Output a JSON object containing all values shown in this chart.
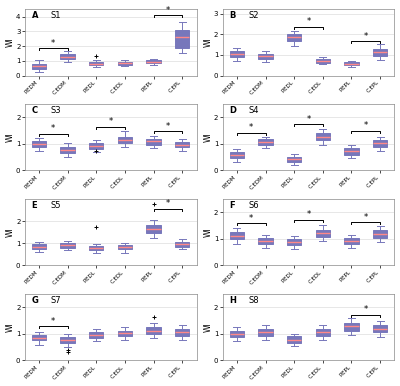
{
  "panels": [
    {
      "label": "A",
      "subject": "S1",
      "ylim": [
        0,
        4.5
      ],
      "yticks": [
        0,
        1,
        2,
        3,
        4
      ],
      "boxes": [
        {
          "med": 0.65,
          "q1": 0.48,
          "q3": 0.78,
          "whislo": 0.25,
          "whishi": 1.05,
          "fliers": []
        },
        {
          "med": 1.3,
          "q1": 1.12,
          "q3": 1.5,
          "whislo": 0.95,
          "whishi": 1.65,
          "fliers": []
        },
        {
          "med": 0.8,
          "q1": 0.72,
          "q3": 0.92,
          "whislo": 0.6,
          "whishi": 1.05,
          "fliers": [
            1.35
          ]
        },
        {
          "med": 0.85,
          "q1": 0.75,
          "q3": 0.95,
          "whislo": 0.65,
          "whishi": 1.05,
          "fliers": []
        },
        {
          "med": 0.95,
          "q1": 0.85,
          "q3": 1.05,
          "whislo": 0.75,
          "whishi": 1.15,
          "fliers": []
        },
        {
          "med": 2.6,
          "q1": 1.9,
          "q3": 3.1,
          "whislo": 1.55,
          "whishi": 3.65,
          "fliers": []
        }
      ],
      "sig_brackets": [
        [
          [
            0,
            1
          ],
          1.85,
          "*"
        ],
        [
          [
            4,
            5
          ],
          4.1,
          "*"
        ]
      ]
    },
    {
      "label": "B",
      "subject": "S2",
      "ylim": [
        0,
        3.2
      ],
      "yticks": [
        0,
        1,
        2,
        3
      ],
      "boxes": [
        {
          "med": 1.05,
          "q1": 0.88,
          "q3": 1.18,
          "whislo": 0.72,
          "whishi": 1.32,
          "fliers": []
        },
        {
          "med": 0.95,
          "q1": 0.8,
          "q3": 1.05,
          "whislo": 0.65,
          "whishi": 1.18,
          "fliers": []
        },
        {
          "med": 1.85,
          "q1": 1.68,
          "q3": 2.0,
          "whislo": 1.45,
          "whishi": 2.18,
          "fliers": []
        },
        {
          "med": 0.72,
          "q1": 0.62,
          "q3": 0.82,
          "whislo": 0.55,
          "whishi": 0.88,
          "fliers": []
        },
        {
          "med": 0.58,
          "q1": 0.5,
          "q3": 0.65,
          "whislo": 0.42,
          "whishi": 0.72,
          "fliers": []
        },
        {
          "med": 1.12,
          "q1": 0.95,
          "q3": 1.3,
          "whislo": 0.78,
          "whishi": 1.55,
          "fliers": []
        }
      ],
      "sig_brackets": [
        [
          [
            2,
            3
          ],
          2.35,
          "*"
        ],
        [
          [
            4,
            5
          ],
          1.65,
          "*"
        ]
      ]
    },
    {
      "label": "C",
      "subject": "S3",
      "ylim": [
        0,
        2.5
      ],
      "yticks": [
        0,
        1,
        2
      ],
      "boxes": [
        {
          "med": 1.0,
          "q1": 0.88,
          "q3": 1.1,
          "whislo": 0.72,
          "whishi": 1.22,
          "fliers": []
        },
        {
          "med": 0.78,
          "q1": 0.65,
          "q3": 0.9,
          "whislo": 0.52,
          "whishi": 1.02,
          "fliers": []
        },
        {
          "med": 0.92,
          "q1": 0.8,
          "q3": 1.02,
          "whislo": 0.68,
          "whishi": 1.15,
          "fliers": [
            0.75
          ]
        },
        {
          "med": 1.15,
          "q1": 1.02,
          "q3": 1.28,
          "whislo": 0.88,
          "whishi": 1.48,
          "fliers": []
        },
        {
          "med": 1.1,
          "q1": 0.98,
          "q3": 1.2,
          "whislo": 0.85,
          "whishi": 1.32,
          "fliers": []
        },
        {
          "med": 0.98,
          "q1": 0.88,
          "q3": 1.08,
          "whislo": 0.75,
          "whishi": 1.18,
          "fliers": []
        }
      ],
      "sig_brackets": [
        [
          [
            0,
            1
          ],
          1.38,
          "*"
        ],
        [
          [
            2,
            3
          ],
          1.65,
          "*"
        ],
        [
          [
            4,
            5
          ],
          1.48,
          "*"
        ]
      ]
    },
    {
      "label": "D",
      "subject": "S4",
      "ylim": [
        0,
        2.5
      ],
      "yticks": [
        0,
        1,
        2
      ],
      "boxes": [
        {
          "med": 0.58,
          "q1": 0.48,
          "q3": 0.68,
          "whislo": 0.32,
          "whishi": 0.82,
          "fliers": []
        },
        {
          "med": 1.08,
          "q1": 0.98,
          "q3": 1.18,
          "whislo": 0.85,
          "whishi": 1.28,
          "fliers": []
        },
        {
          "med": 0.42,
          "q1": 0.32,
          "q3": 0.52,
          "whislo": 0.22,
          "whishi": 0.62,
          "fliers": []
        },
        {
          "med": 1.28,
          "q1": 1.15,
          "q3": 1.42,
          "whislo": 0.98,
          "whishi": 1.58,
          "fliers": []
        },
        {
          "med": 0.72,
          "q1": 0.6,
          "q3": 0.85,
          "whislo": 0.48,
          "whishi": 0.98,
          "fliers": []
        },
        {
          "med": 1.02,
          "q1": 0.88,
          "q3": 1.15,
          "whislo": 0.75,
          "whishi": 1.28,
          "fliers": []
        }
      ],
      "sig_brackets": [
        [
          [
            0,
            1
          ],
          1.42,
          "*"
        ],
        [
          [
            2,
            3
          ],
          1.75,
          "*"
        ],
        [
          [
            4,
            5
          ],
          1.5,
          "*"
        ]
      ]
    },
    {
      "label": "E",
      "subject": "S5",
      "ylim": [
        0,
        3.0
      ],
      "yticks": [
        0,
        1,
        2
      ],
      "boxes": [
        {
          "med": 0.85,
          "q1": 0.75,
          "q3": 0.95,
          "whislo": 0.62,
          "whishi": 1.05,
          "fliers": []
        },
        {
          "med": 0.92,
          "q1": 0.8,
          "q3": 1.02,
          "whislo": 0.68,
          "whishi": 1.12,
          "fliers": []
        },
        {
          "med": 0.78,
          "q1": 0.68,
          "q3": 0.88,
          "whislo": 0.55,
          "whishi": 0.98,
          "fliers": [
            1.72
          ]
        },
        {
          "med": 0.82,
          "q1": 0.72,
          "q3": 0.92,
          "whislo": 0.58,
          "whishi": 1.02,
          "fliers": []
        },
        {
          "med": 1.65,
          "q1": 1.48,
          "q3": 1.82,
          "whislo": 1.25,
          "whishi": 2.05,
          "fliers": [
            2.78
          ]
        },
        {
          "med": 0.95,
          "q1": 0.85,
          "q3": 1.05,
          "whislo": 0.72,
          "whishi": 1.18,
          "fliers": []
        }
      ],
      "sig_brackets": [
        [
          [
            4,
            5
          ],
          2.55,
          "*"
        ]
      ]
    },
    {
      "label": "F",
      "subject": "S6",
      "ylim": [
        0,
        2.5
      ],
      "yticks": [
        0,
        1,
        2
      ],
      "boxes": [
        {
          "med": 1.12,
          "q1": 0.98,
          "q3": 1.25,
          "whislo": 0.8,
          "whishi": 1.42,
          "fliers": []
        },
        {
          "med": 0.92,
          "q1": 0.8,
          "q3": 1.02,
          "whislo": 0.65,
          "whishi": 1.15,
          "fliers": []
        },
        {
          "med": 0.88,
          "q1": 0.75,
          "q3": 1.0,
          "whislo": 0.62,
          "whishi": 1.12,
          "fliers": []
        },
        {
          "med": 1.22,
          "q1": 1.08,
          "q3": 1.35,
          "whislo": 0.92,
          "whishi": 1.52,
          "fliers": []
        },
        {
          "med": 0.92,
          "q1": 0.8,
          "q3": 1.02,
          "whislo": 0.65,
          "whishi": 1.15,
          "fliers": []
        },
        {
          "med": 1.18,
          "q1": 1.05,
          "q3": 1.32,
          "whislo": 0.88,
          "whishi": 1.48,
          "fliers": []
        }
      ],
      "sig_brackets": [
        [
          [
            0,
            1
          ],
          1.58,
          "*"
        ],
        [
          [
            2,
            3
          ],
          1.72,
          "*"
        ],
        [
          [
            4,
            5
          ],
          1.62,
          "*"
        ]
      ]
    },
    {
      "label": "G",
      "subject": "S7",
      "ylim": [
        0,
        2.5
      ],
      "yticks": [
        0,
        1,
        2
      ],
      "boxes": [
        {
          "med": 0.85,
          "q1": 0.75,
          "q3": 0.95,
          "whislo": 0.58,
          "whishi": 1.08,
          "fliers": []
        },
        {
          "med": 0.78,
          "q1": 0.65,
          "q3": 0.88,
          "whislo": 0.48,
          "whishi": 0.98,
          "fliers": [
            0.32,
            0.38
          ]
        },
        {
          "med": 0.95,
          "q1": 0.85,
          "q3": 1.05,
          "whislo": 0.72,
          "whishi": 1.18,
          "fliers": []
        },
        {
          "med": 1.02,
          "q1": 0.9,
          "q3": 1.12,
          "whislo": 0.78,
          "whishi": 1.25,
          "fliers": []
        },
        {
          "med": 1.12,
          "q1": 1.0,
          "q3": 1.25,
          "whislo": 0.85,
          "whishi": 1.42,
          "fliers": [
            1.62
          ]
        },
        {
          "med": 1.05,
          "q1": 0.92,
          "q3": 1.18,
          "whislo": 0.78,
          "whishi": 1.32,
          "fliers": []
        }
      ],
      "sig_brackets": [
        [
          [
            0,
            1
          ],
          1.28,
          "*"
        ]
      ]
    },
    {
      "label": "H",
      "subject": "S8",
      "ylim": [
        0,
        2.5
      ],
      "yticks": [
        0,
        1,
        2
      ],
      "boxes": [
        {
          "med": 1.0,
          "q1": 0.88,
          "q3": 1.12,
          "whislo": 0.72,
          "whishi": 1.25,
          "fliers": []
        },
        {
          "med": 1.05,
          "q1": 0.92,
          "q3": 1.18,
          "whislo": 0.78,
          "whishi": 1.32,
          "fliers": []
        },
        {
          "med": 0.78,
          "q1": 0.65,
          "q3": 0.9,
          "whislo": 0.52,
          "whishi": 1.0,
          "fliers": []
        },
        {
          "med": 1.05,
          "q1": 0.92,
          "q3": 1.18,
          "whislo": 0.78,
          "whishi": 1.32,
          "fliers": []
        },
        {
          "med": 1.28,
          "q1": 1.12,
          "q3": 1.42,
          "whislo": 0.95,
          "whishi": 1.58,
          "fliers": []
        },
        {
          "med": 1.18,
          "q1": 1.05,
          "q3": 1.32,
          "whislo": 0.88,
          "whishi": 1.48,
          "fliers": []
        }
      ],
      "sig_brackets": [
        [
          [
            4,
            5
          ],
          1.72,
          "*"
        ]
      ]
    }
  ],
  "xticklabels": [
    "P.EDM",
    "C.EDM",
    "P.EDL",
    "C.EDL",
    "P.EPL",
    "C.EPL"
  ],
  "box_facecolor": "#c8c8f0",
  "box_edgecolor": "#7777bb",
  "median_color": "#ff8888",
  "whisker_color": "#7777bb",
  "flier_color": "#ff2222",
  "ylabel": "WI",
  "background_color": "#ffffff",
  "grid_color": "#dddddd"
}
